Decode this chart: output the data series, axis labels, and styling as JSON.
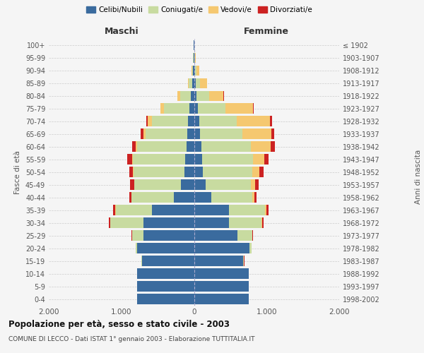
{
  "age_groups": [
    "0-4",
    "5-9",
    "10-14",
    "15-19",
    "20-24",
    "25-29",
    "30-34",
    "35-39",
    "40-44",
    "45-49",
    "50-54",
    "55-59",
    "60-64",
    "65-69",
    "70-74",
    "75-79",
    "80-84",
    "85-89",
    "90-94",
    "95-99",
    "100+"
  ],
  "birth_years": [
    "1998-2002",
    "1993-1997",
    "1988-1992",
    "1983-1987",
    "1978-1982",
    "1973-1977",
    "1968-1972",
    "1963-1967",
    "1958-1962",
    "1953-1957",
    "1948-1952",
    "1943-1947",
    "1938-1942",
    "1933-1937",
    "1928-1932",
    "1923-1927",
    "1918-1922",
    "1913-1917",
    "1908-1912",
    "1903-1907",
    "≤ 1902"
  ],
  "male": {
    "celibe": [
      780,
      780,
      780,
      720,
      780,
      700,
      700,
      580,
      280,
      180,
      130,
      120,
      100,
      90,
      80,
      60,
      40,
      20,
      10,
      5,
      2
    ],
    "coniugato": [
      1,
      1,
      2,
      5,
      20,
      150,
      450,
      500,
      580,
      640,
      700,
      720,
      680,
      580,
      500,
      350,
      150,
      50,
      15,
      5,
      2
    ],
    "vedovo": [
      0,
      0,
      0,
      0,
      1,
      2,
      2,
      2,
      3,
      5,
      10,
      15,
      20,
      30,
      60,
      50,
      40,
      15,
      5,
      2,
      1
    ],
    "divorziato": [
      0,
      0,
      0,
      0,
      2,
      5,
      20,
      30,
      30,
      60,
      55,
      60,
      50,
      30,
      20,
      5,
      3,
      2,
      1,
      0,
      0
    ]
  },
  "female": {
    "nubile": [
      750,
      750,
      750,
      680,
      760,
      600,
      480,
      480,
      240,
      160,
      120,
      110,
      100,
      80,
      70,
      50,
      35,
      20,
      10,
      5,
      2
    ],
    "coniugata": [
      1,
      1,
      2,
      8,
      30,
      200,
      450,
      500,
      560,
      620,
      680,
      700,
      680,
      590,
      520,
      380,
      170,
      60,
      20,
      5,
      2
    ],
    "vedova": [
      0,
      0,
      0,
      2,
      5,
      5,
      10,
      15,
      30,
      60,
      100,
      160,
      280,
      400,
      460,
      380,
      200,
      100,
      40,
      10,
      2
    ],
    "divorziata": [
      0,
      0,
      0,
      1,
      3,
      8,
      20,
      35,
      35,
      55,
      55,
      55,
      50,
      30,
      30,
      15,
      5,
      3,
      2,
      0,
      0
    ]
  },
  "colors": {
    "celibe": "#3a6b9e",
    "coniugato": "#c8dba0",
    "vedovo": "#f5c870",
    "divorziato": "#cc2222"
  },
  "title": "Popolazione per età, sesso e stato civile - 2003",
  "subtitle": "COMUNE DI LECCO - Dati ISTAT 1° gennaio 2003 - Elaborazione TUTTITALIA.IT",
  "xlabel_left": "Maschi",
  "xlabel_right": "Femmine",
  "ylabel_left": "Fasce di età",
  "ylabel_right": "Anni di nascita",
  "xlim": 2000,
  "bg_color": "#f5f5f5",
  "grid_color": "#cccccc"
}
